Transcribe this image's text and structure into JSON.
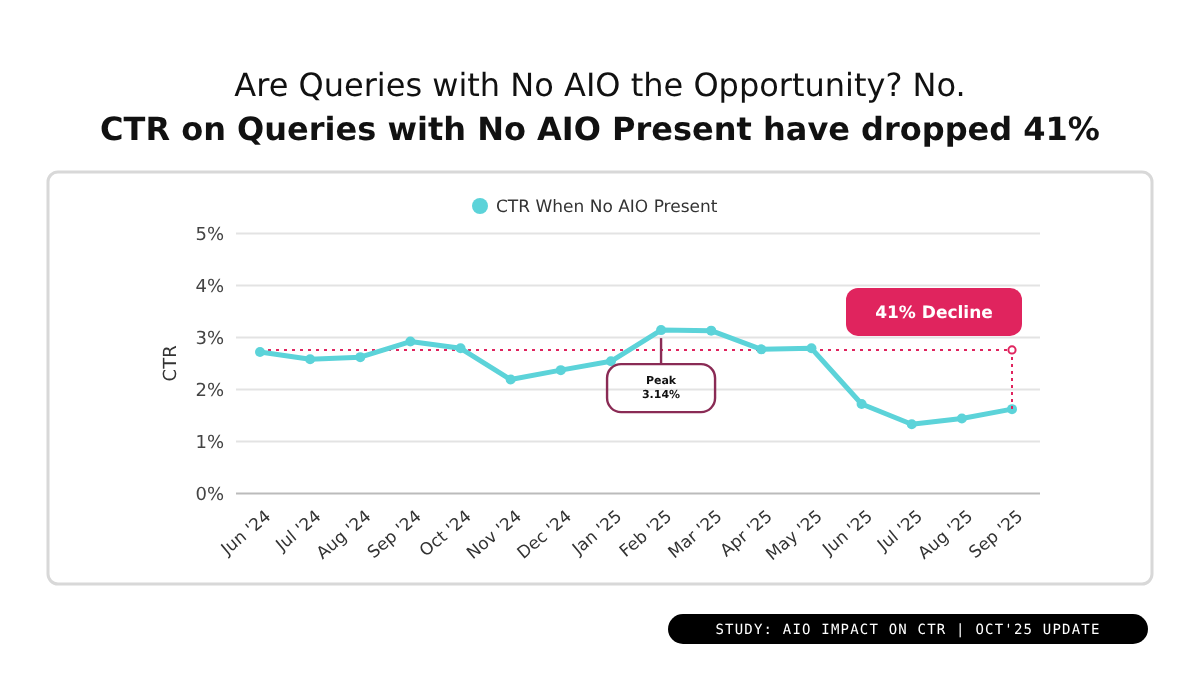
{
  "chart_data": {
    "type": "line",
    "title": "Are Queries with No AIO the Opportunity? No.",
    "subtitle": "CTR on Queries with No AIO Present have dropped 41%",
    "ylabel": "CTR",
    "categories": [
      "Jun '24",
      "Jul '24",
      "Aug '24",
      "Sep '24",
      "Oct '24",
      "Nov '24",
      "Dec '24",
      "Jan '25",
      "Feb '25",
      "Mar '25",
      "Apr '25",
      "May '25",
      "Jun '25",
      "Jul '25",
      "Aug '25",
      "Sep '25"
    ],
    "series": [
      {
        "name": "CTR When No AIO Present",
        "color": "#5cd3d9",
        "values": [
          2.72,
          2.58,
          2.62,
          2.92,
          2.79,
          2.19,
          2.37,
          2.54,
          3.14,
          3.13,
          2.77,
          2.79,
          1.72,
          1.33,
          1.44,
          1.62
        ]
      }
    ],
    "ylim": [
      0,
      5
    ],
    "yticks": [
      {
        "value": 0,
        "label": "0%"
      },
      {
        "value": 1,
        "label": "1%"
      },
      {
        "value": 2,
        "label": "2%"
      },
      {
        "value": 3,
        "label": "3%"
      },
      {
        "value": 4,
        "label": "4%"
      },
      {
        "value": 5,
        "label": "5%"
      }
    ],
    "grid": "y",
    "legend": "top",
    "marker": "circle",
    "line_style": "solid",
    "ref_lines": [
      {
        "axis": "y",
        "value": 2.76,
        "color": "#e0245e",
        "line_style": "dotted"
      }
    ],
    "annotations": [
      "Peak\n3.14%",
      "41% Decline",
      "STUDY: AIO IMPACT ON CTR | OCT'25 UPDATE"
    ]
  }
}
